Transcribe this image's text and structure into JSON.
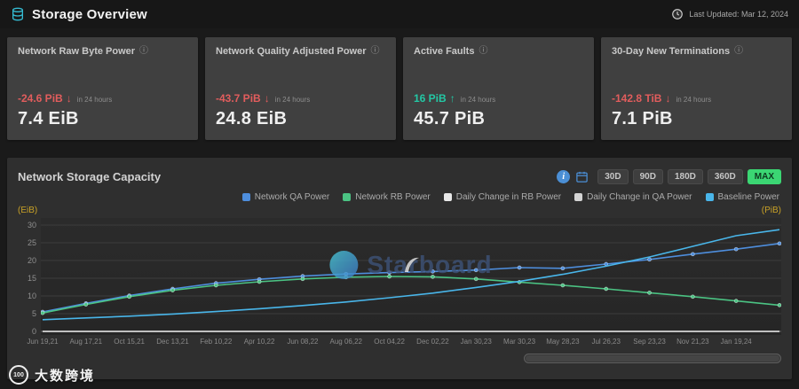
{
  "header": {
    "title": "Storage Overview",
    "last_updated": "Last Updated: Mar 12, 2024"
  },
  "stat_cards": [
    {
      "title": "Network Raw Byte Power",
      "change": "-24.6 PiB",
      "arrow": "↓",
      "direction": "down",
      "period": "in 24 hours",
      "value": "7.4 EiB"
    },
    {
      "title": "Network Quality Adjusted Power",
      "change": "-43.7 PiB",
      "arrow": "↓",
      "direction": "down",
      "period": "in 24 hours",
      "value": "24.8 EiB"
    },
    {
      "title": "Active Faults",
      "change": "16 PiB",
      "arrow": "↑",
      "direction": "up",
      "period": "in 24 hours",
      "value": "45.7 PiB"
    },
    {
      "title": "30-Day New Terminations",
      "change": "-142.8 TiB",
      "arrow": "↓",
      "direction": "down",
      "period": "in 24 hours",
      "value": "7.1 PiB"
    }
  ],
  "colors": {
    "negative": "#e25d5d",
    "positive": "#23c8a5",
    "axis_unit": "#c9a227",
    "active_range_bg": "#3bd673"
  },
  "chart_panel": {
    "title": "Network Storage Capacity",
    "ranges": [
      "30D",
      "90D",
      "180D",
      "360D",
      "MAX"
    ],
    "active_range": "MAX",
    "y_unit_left": "(EiB)",
    "y_unit_right": "(PiB)",
    "watermark": "Starboard"
  },
  "chart_data": {
    "type": "line",
    "title": "Network Storage Capacity",
    "x_tick_labels": [
      "Jun 19,21",
      "Aug 17,21",
      "Oct 15,21",
      "Dec 13,21",
      "Feb 10,22",
      "Apr 10,22",
      "Jun 08,22",
      "Aug 06,22",
      "Oct 04,22",
      "Dec 02,22",
      "Jan 30,23",
      "Mar 30,23",
      "May 28,23",
      "Jul 26,23",
      "Sep 23,23",
      "Nov 21,23",
      "Jan 19,24"
    ],
    "ylim": [
      0,
      30
    ],
    "y_ticks": [
      0,
      5,
      10,
      15,
      20,
      25,
      30
    ],
    "grid": true,
    "legend_position": "top-right",
    "series": [
      {
        "name": "Network QA Power",
        "color": "#4e8edd",
        "markers": true,
        "values": [
          5.5,
          7.9,
          10.1,
          12.0,
          13.6,
          14.7,
          15.6,
          16.2,
          16.6,
          16.9,
          17.3,
          18.0,
          17.8,
          19.0,
          20.3,
          21.8,
          23.2,
          24.8
        ]
      },
      {
        "name": "Network RB Power",
        "color": "#4bc383",
        "markers": true,
        "values": [
          5.2,
          7.6,
          9.8,
          11.6,
          13.0,
          14.0,
          14.8,
          15.3,
          15.5,
          15.4,
          14.8,
          13.9,
          13.0,
          12.0,
          10.9,
          9.8,
          8.6,
          7.4
        ]
      },
      {
        "name": "Daily Change in RB Power",
        "color": "#e8e8e8",
        "markers": false,
        "values": [
          0,
          0,
          0,
          0,
          0,
          0,
          0,
          0,
          0,
          0,
          0,
          0,
          0,
          0,
          0,
          0,
          0,
          0
        ]
      },
      {
        "name": "Daily Change in QA Power",
        "color": "#d4d4d4",
        "markers": false,
        "values": [
          0,
          0,
          0,
          0,
          0,
          0,
          0,
          0,
          0,
          0,
          0,
          0,
          0,
          0,
          0,
          0,
          0,
          0
        ]
      },
      {
        "name": "Baseline Power",
        "color": "#49b6ea",
        "markers": false,
        "values": [
          3.3,
          3.8,
          4.3,
          4.9,
          5.6,
          6.4,
          7.3,
          8.3,
          9.5,
          10.8,
          12.4,
          14.1,
          16.1,
          18.4,
          21.0,
          24.0,
          27.0,
          28.7
        ]
      }
    ]
  },
  "footer": {
    "site_watermark": "大数跨境",
    "site_logo_text": "100"
  }
}
